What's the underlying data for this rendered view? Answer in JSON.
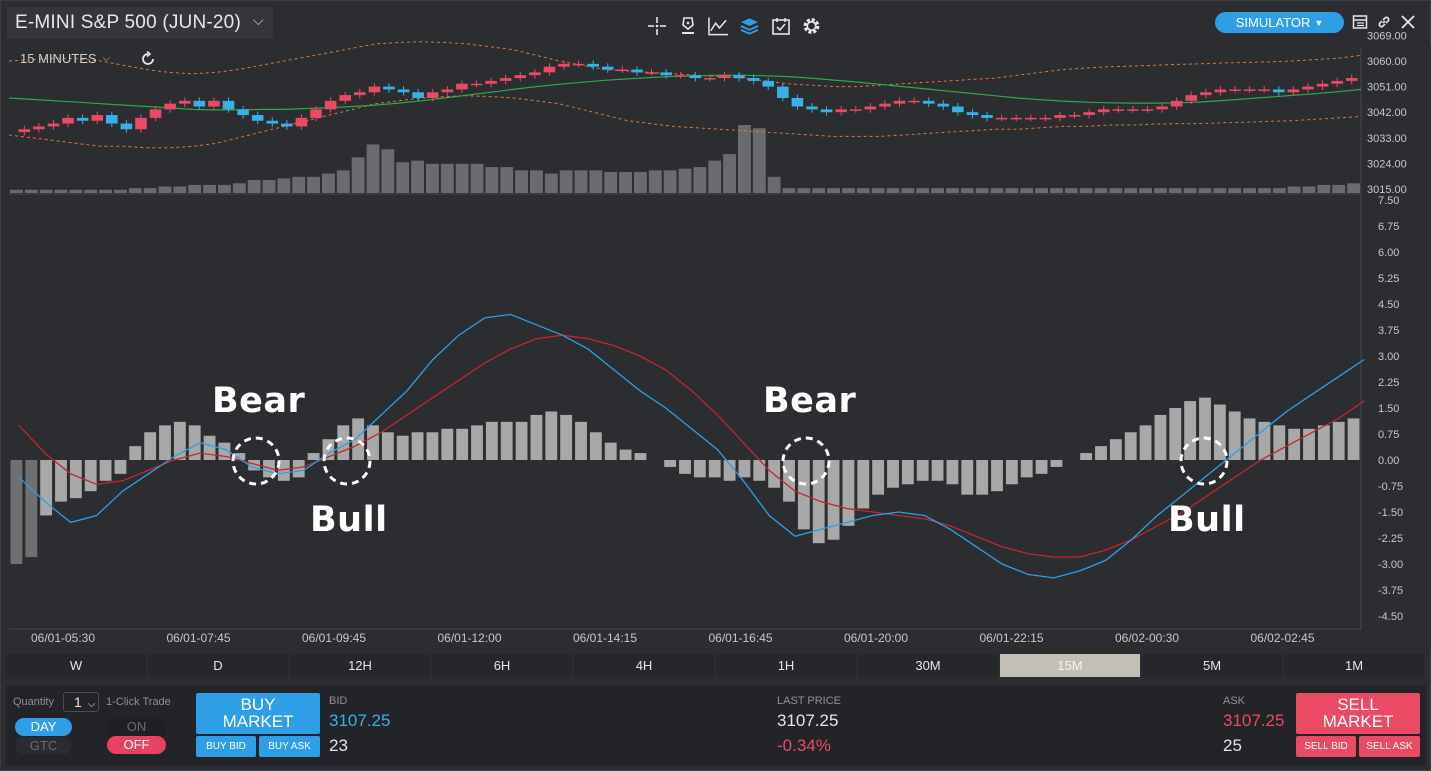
{
  "header": {
    "title": "E-MINI S&P 500 (JUN-20)",
    "account_mode": "SIMULATOR",
    "tool_icons": [
      "crosshair-icon",
      "pen-icon",
      "studies-icon",
      "layers-icon",
      "calendar-icon",
      "gear-icon"
    ],
    "window_icons": [
      "layout-icon",
      "link-icon",
      "close-icon"
    ]
  },
  "chart": {
    "interval_label": "15 MINUTES",
    "colors": {
      "background": "#2b2d31",
      "up_candle": "#ea4a63",
      "down_candle": "#37b1e8",
      "band_mid": "#2ea84a",
      "band_outer": "#d87a3e",
      "macd_line": "#2e9ee6",
      "signal_line": "#c0282c",
      "histogram": "#a8a8a8",
      "volume": "#6a6b6f"
    },
    "annotations": [
      {
        "label": "Bear",
        "circle": 1
      },
      {
        "label": "Bull",
        "circle": 2
      },
      {
        "label": "Bear",
        "circle": 3
      },
      {
        "label": "Bull",
        "circle": 4
      }
    ]
  },
  "chart_data": [
    {
      "type": "candlestick",
      "title": "",
      "y_ticks": [
        "3069.00",
        "3060.00",
        "3051.00",
        "3042.00",
        "3033.00",
        "3024.00",
        "3015.00"
      ],
      "ylim": [
        3015,
        3069
      ],
      "close": [
        3036,
        3037,
        3038,
        3040,
        3039,
        3041,
        3038,
        3036,
        3040,
        3043,
        3045,
        3046,
        3044,
        3046,
        3043,
        3041,
        3039,
        3038,
        3037,
        3040,
        3043,
        3046,
        3048,
        3049,
        3051,
        3050,
        3049,
        3047,
        3049,
        3050,
        3052,
        3052,
        3053,
        3054,
        3055,
        3056,
        3058,
        3059,
        3059,
        3058,
        3057,
        3057,
        3056,
        3056,
        3055,
        3055,
        3054,
        3054,
        3055,
        3054,
        3053,
        3051,
        3047,
        3044,
        3043,
        3042,
        3043,
        3043,
        3044,
        3045,
        3046,
        3046,
        3045,
        3044,
        3042,
        3041,
        3040,
        3040,
        3040,
        3040,
        3040,
        3041,
        3041,
        3042,
        3043,
        3043,
        3043,
        3043,
        3044,
        3046,
        3048,
        3049,
        3050,
        3050,
        3050,
        3050,
        3049,
        3050,
        3051,
        3052,
        3053,
        3054
      ],
      "band_mid": [
        3047,
        3046.5,
        3046,
        3045.5,
        3045,
        3044.5,
        3044,
        3043.5,
        3043,
        3042.8,
        3042.8,
        3043,
        3043,
        3043.3,
        3043.6,
        3044,
        3044.5,
        3045.2,
        3046,
        3047,
        3048,
        3049,
        3050,
        3051,
        3051.8,
        3052.5,
        3053.2,
        3053.7,
        3054.2,
        3054.6,
        3054.8,
        3055,
        3055,
        3054.8,
        3054.5,
        3054,
        3053.3,
        3052.6,
        3051.8,
        3051,
        3050.2,
        3049.4,
        3048.6,
        3047.8,
        3047,
        3046.4,
        3045.9,
        3045.5,
        3045.3,
        3045.2,
        3045.2,
        3045.3,
        3045.6,
        3046.1,
        3046.7,
        3047.3,
        3047.9,
        3048.5,
        3049.2,
        3050
      ],
      "band_upper": [
        3060,
        3060.5,
        3061,
        3060.8,
        3060,
        3058.5,
        3057,
        3056,
        3055.5,
        3056,
        3057,
        3058.5,
        3060,
        3061.5,
        3063,
        3064.5,
        3066,
        3066.5,
        3066.8,
        3066.5,
        3066,
        3065,
        3064,
        3062,
        3060,
        3058.5,
        3057,
        3056.5,
        3056,
        3055.5,
        3055,
        3054.5,
        3054,
        3053,
        3052,
        3051.5,
        3051,
        3051,
        3051.5,
        3052,
        3052.5,
        3053,
        3053.5,
        3054,
        3055,
        3056,
        3057,
        3057.5,
        3058,
        3058.2,
        3058.5,
        3058.8,
        3059,
        3059.3,
        3059.5,
        3059.7,
        3060,
        3060.5,
        3061,
        3062
      ],
      "band_lower": [
        3034,
        3033,
        3032,
        3031,
        3030,
        3030,
        3029.5,
        3029.5,
        3030,
        3031,
        3033,
        3035,
        3037,
        3039,
        3041,
        3043,
        3045,
        3046,
        3047,
        3047.5,
        3047.8,
        3047.5,
        3047,
        3046,
        3045,
        3043,
        3041,
        3039,
        3038,
        3037,
        3036.5,
        3036,
        3035.5,
        3035,
        3034.5,
        3034,
        3033.5,
        3033.5,
        3033.5,
        3034,
        3034.5,
        3035,
        3035.5,
        3036,
        3036,
        3036.5,
        3037,
        3037,
        3037.5,
        3037.5,
        3037.8,
        3038,
        3038,
        3038.3,
        3038.5,
        3038.8,
        3039,
        3039.5,
        3040,
        3040.5
      ]
    },
    {
      "type": "bar",
      "title": "",
      "values": [
        2,
        2,
        2,
        2,
        2,
        2,
        2,
        2,
        3,
        3,
        4,
        4,
        5,
        5,
        5,
        6,
        8,
        8,
        9,
        10,
        10,
        12,
        14,
        22,
        30,
        27,
        19,
        20,
        18,
        18,
        18,
        18,
        16,
        16,
        14,
        14,
        12,
        14,
        14,
        14,
        13,
        13,
        13,
        14,
        14,
        15,
        16,
        20,
        24,
        42,
        40,
        10,
        3,
        3,
        3,
        3,
        3,
        3,
        3,
        3,
        3,
        3,
        3,
        3,
        3,
        3,
        3,
        3,
        3,
        3,
        3,
        3,
        3,
        3,
        3,
        3,
        3,
        3,
        3,
        3,
        3,
        3,
        3,
        3,
        3,
        3,
        4,
        4,
        5,
        5,
        6
      ]
    },
    {
      "type": "line",
      "title": "",
      "y_ticks": [
        "7.50",
        "6.75",
        "6.00",
        "5.25",
        "4.50",
        "3.75",
        "3.00",
        "2.25",
        "1.50",
        "0.75",
        "0.00",
        "-0.75",
        "-1.50",
        "-2.25",
        "-3.00",
        "-3.75",
        "-4.50"
      ],
      "ylim": [
        -4.5,
        7.5
      ],
      "x_ticks": [
        "06/01-05:30",
        "06/01-07:45",
        "06/01-09:45",
        "06/01-12:00",
        "06/01-14:15",
        "06/01-16:45",
        "06/01-20:00",
        "06/01-22:15",
        "06/02-00:30",
        "06/02-02:45"
      ],
      "series": [
        {
          "key": "macd",
          "values": [
            -0.5,
            -1.2,
            -1.8,
            -1.6,
            -0.9,
            -0.4,
            0.1,
            0.5,
            0.3,
            -0.2,
            -0.4,
            -0.3,
            0.2,
            0.6,
            1.3,
            2.0,
            2.9,
            3.6,
            4.1,
            4.2,
            3.9,
            3.6,
            3.2,
            2.6,
            2.0,
            1.5,
            0.9,
            0.3,
            -0.6,
            -1.6,
            -2.2,
            -2.0,
            -1.8,
            -1.6,
            -1.5,
            -1.6,
            -2.0,
            -2.5,
            -3.0,
            -3.3,
            -3.4,
            -3.2,
            -2.9,
            -2.3,
            -1.6,
            -1.0,
            -0.4,
            0.2,
            0.8,
            1.4,
            1.9,
            2.4,
            2.9
          ]
        },
        {
          "key": "signal",
          "values": [
            1.0,
            0.2,
            -0.4,
            -0.7,
            -0.6,
            -0.3,
            0.0,
            0.2,
            0.1,
            -0.1,
            -0.3,
            -0.2,
            0.1,
            0.4,
            0.8,
            1.3,
            1.8,
            2.3,
            2.8,
            3.2,
            3.5,
            3.6,
            3.5,
            3.3,
            3.0,
            2.6,
            2.0,
            1.3,
            0.5,
            -0.3,
            -0.9,
            -1.2,
            -1.4,
            -1.5,
            -1.6,
            -1.7,
            -1.9,
            -2.2,
            -2.5,
            -2.7,
            -2.8,
            -2.8,
            -2.6,
            -2.3,
            -1.9,
            -1.5,
            -1.0,
            -0.5,
            0.0,
            0.4,
            0.8,
            1.2,
            1.7
          ]
        }
      ]
    },
    {
      "type": "bar",
      "title": "",
      "values": [
        -3.0,
        -2.8,
        -1.6,
        -1.2,
        -1.1,
        -0.9,
        -0.6,
        -0.4,
        0.4,
        0.8,
        1.0,
        1.1,
        1.0,
        0.7,
        0.5,
        0.2,
        -0.3,
        -0.5,
        -0.6,
        -0.5,
        0.2,
        0.6,
        1.0,
        1.2,
        1.0,
        0.8,
        0.7,
        0.8,
        0.8,
        0.9,
        0.9,
        1.0,
        1.1,
        1.1,
        1.1,
        1.3,
        1.4,
        1.3,
        1.1,
        0.8,
        0.5,
        0.3,
        0.2,
        0.0,
        -0.2,
        -0.4,
        -0.5,
        -0.5,
        -0.6,
        -0.5,
        -0.6,
        -0.8,
        -1.2,
        -2.0,
        -2.4,
        -2.3,
        -1.9,
        -1.4,
        -1.0,
        -0.8,
        -0.7,
        -0.6,
        -0.6,
        -0.7,
        -1.0,
        -1.0,
        -0.9,
        -0.7,
        -0.5,
        -0.4,
        -0.2,
        0.0,
        0.2,
        0.4,
        0.6,
        0.8,
        1.0,
        1.3,
        1.5,
        1.7,
        1.8,
        1.6,
        1.4,
        1.2,
        1.1,
        1.0,
        0.9,
        0.9,
        1.0,
        1.1,
        1.2
      ]
    }
  ],
  "timeframes": [
    "W",
    "D",
    "12H",
    "6H",
    "4H",
    "1H",
    "30M",
    "15M",
    "5M",
    "1M"
  ],
  "active_timeframe": "15M",
  "trade_panel": {
    "quantity_label": "Quantity",
    "quantity_value": "1",
    "one_click_label": "1-Click Trade",
    "day_label": "DAY",
    "gtc_label": "GTC",
    "on_label": "ON",
    "off_label": "OFF",
    "buy_market_line1": "BUY",
    "buy_market_line2": "MARKET",
    "buy_bid": "BUY BID",
    "buy_ask": "BUY ASK",
    "bid_label": "BID",
    "bid_price": "3107.25",
    "bid_size": "23",
    "last_label": "LAST PRICE",
    "last_price": "3107.25",
    "change": "-0.34%",
    "ask_label": "ASK",
    "ask_price": "3107.25",
    "ask_size": "25",
    "sell_market_line1": "SELL",
    "sell_market_line2": "MARKET",
    "sell_bid": "SELL BID",
    "sell_ask": "SELL ASK"
  }
}
